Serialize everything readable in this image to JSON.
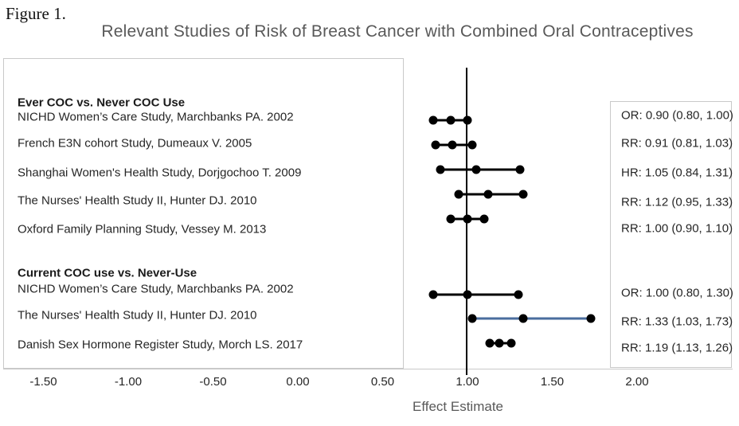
{
  "figure": {
    "label": "Figure 1."
  },
  "colors": {
    "title_gray": "#595959",
    "text_dark": "#262626",
    "border_gray": "#c9c9c9",
    "marker_black": "#000000",
    "highlight_blue": "#4a6d9e"
  },
  "chart_data": {
    "type": "forest",
    "title": "Relevant Studies of Risk of Breast Cancer with Combined Oral Contraceptives",
    "xlabel": "Effect Estimate",
    "x_ticks": [
      -1.5,
      -1.0,
      -0.5,
      0.0,
      0.5,
      1.0,
      1.5,
      2.0
    ],
    "x_tick_labels": [
      "-1.50",
      "-1.00",
      "-0.50",
      "0.00",
      "0.50",
      "1.00",
      "1.50",
      "2.00"
    ],
    "xlim": [
      -1.75,
      2.55
    ],
    "reference_line": 1.0,
    "grid": false,
    "legend_position": "none",
    "groups": [
      {
        "header": "Ever COC vs. Never COC Use",
        "studies": [
          {
            "label": "NICHD Women’s Care Study, Marchbanks PA. 2002",
            "measure": "OR",
            "estimate": 0.9,
            "ci_low": 0.8,
            "ci_high": 1.0,
            "display": "OR: 0.90 (0.80, 1.00)",
            "line_color": "#000000"
          },
          {
            "label": "French E3N cohort Study, Dumeaux V. 2005",
            "measure": "RR",
            "estimate": 0.91,
            "ci_low": 0.81,
            "ci_high": 1.03,
            "display": "RR: 0.91 (0.81, 1.03)",
            "line_color": "#000000"
          },
          {
            "label": "Shanghai Women's Health Study, Dorjgochoo T. 2009",
            "measure": "HR",
            "estimate": 1.05,
            "ci_low": 0.84,
            "ci_high": 1.31,
            "display": "HR: 1.05 (0.84, 1.31)",
            "line_color": "#000000"
          },
          {
            "label": "The Nurses' Health Study II, Hunter DJ. 2010",
            "measure": "RR",
            "estimate": 1.12,
            "ci_low": 0.95,
            "ci_high": 1.33,
            "display": "RR: 1.12 (0.95, 1.33)",
            "line_color": "#000000"
          },
          {
            "label": "Oxford Family Planning Study, Vessey M. 2013",
            "measure": "RR",
            "estimate": 1.0,
            "ci_low": 0.9,
            "ci_high": 1.1,
            "display": "RR: 1.00 (0.90, 1.10)",
            "line_color": "#000000"
          }
        ]
      },
      {
        "header": "Current COC use vs. Never-Use",
        "studies": [
          {
            "label": "NICHD Women’s Care Study, Marchbanks PA. 2002",
            "measure": "OR",
            "estimate": 1.0,
            "ci_low": 0.8,
            "ci_high": 1.3,
            "display": "OR: 1.00 (0.80, 1.30)",
            "line_color": "#000000"
          },
          {
            "label": "The Nurses' Health Study II, Hunter DJ. 2010",
            "measure": "RR",
            "estimate": 1.33,
            "ci_low": 1.03,
            "ci_high": 1.73,
            "display": "RR: 1.33 (1.03, 1.73)",
            "line_color": "#4a6d9e"
          },
          {
            "label": "Danish Sex Hormone Register Study, Morch LS. 2017",
            "measure": "RR",
            "estimate": 1.19,
            "ci_low": 1.13,
            "ci_high": 1.26,
            "display": "RR: 1.19 (1.13, 1.26)",
            "line_color": "#000000"
          }
        ]
      }
    ]
  }
}
